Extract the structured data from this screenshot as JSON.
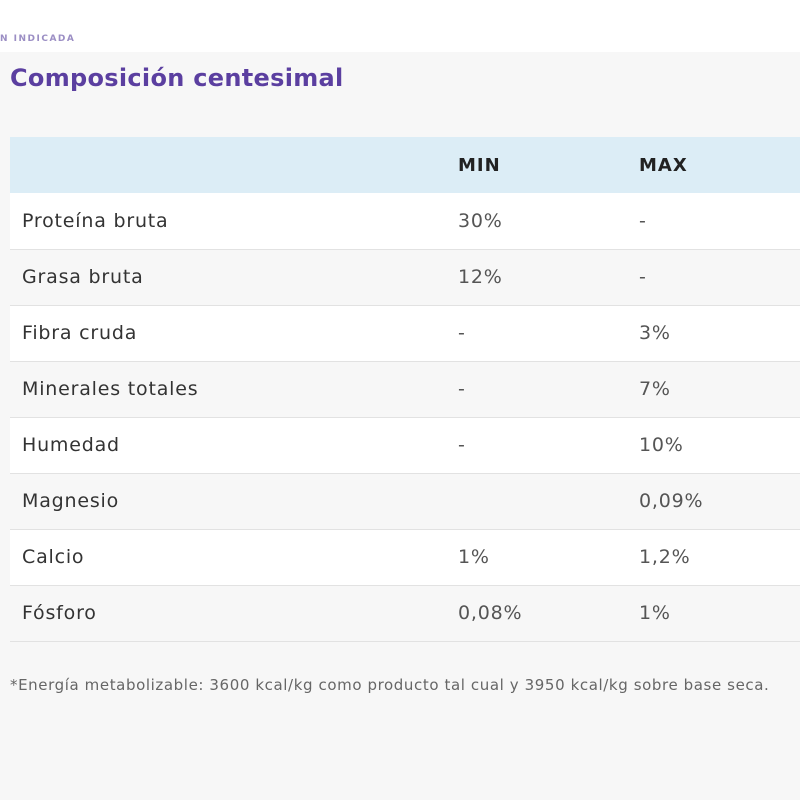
{
  "top": {
    "cut_text": "N INDICADA"
  },
  "section": {
    "title": "Composición centesimal"
  },
  "table": {
    "headers": [
      "",
      "MIN",
      "MAX"
    ],
    "rows": [
      {
        "name": "Proteína bruta",
        "min": "30%",
        "max": "-"
      },
      {
        "name": "Grasa bruta",
        "min": "12%",
        "max": "-"
      },
      {
        "name": "Fibra cruda",
        "min": "-",
        "max": "3%"
      },
      {
        "name": "Minerales totales",
        "min": "-",
        "max": "7%"
      },
      {
        "name": "Humedad",
        "min": "-",
        "max": "10%"
      },
      {
        "name": "Magnesio",
        "min": "",
        "max": "0,09%"
      },
      {
        "name": "Calcio",
        "min": "1%",
        "max": "1,2%"
      },
      {
        "name": "Fósforo",
        "min": "0,08%",
        "max": "1%"
      }
    ]
  },
  "footnote": "*Energía metabolizable: 3600 kcal/kg como producto tal cual y 3950 kcal/kg sobre base seca."
}
